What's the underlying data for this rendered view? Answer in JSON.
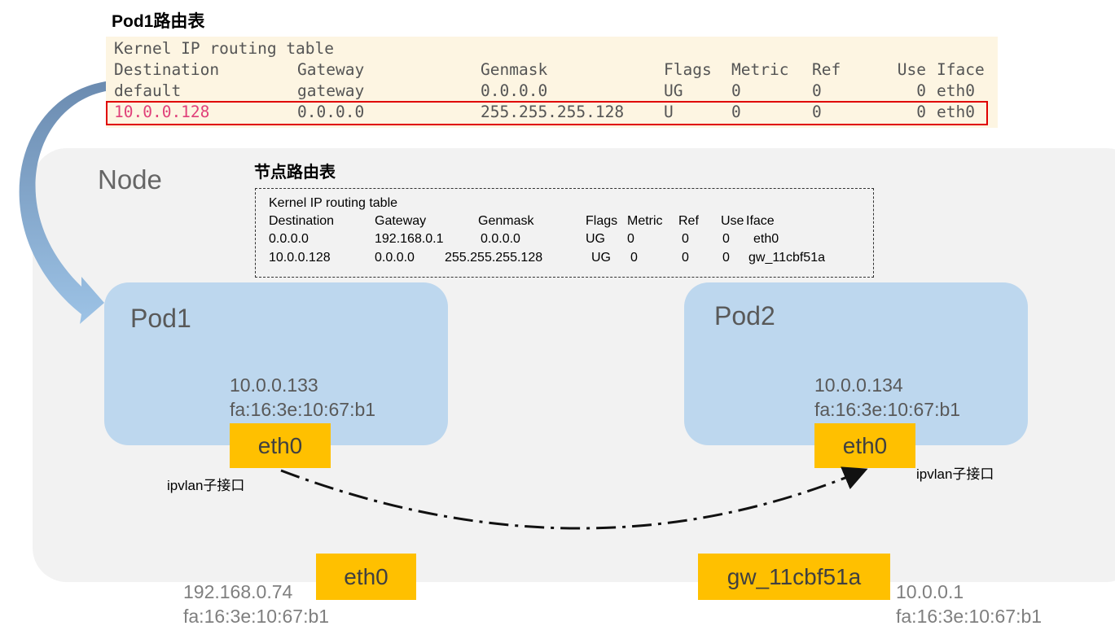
{
  "pod1_table": {
    "title": "Pod1路由表",
    "caption": "Kernel IP routing table",
    "headers": [
      "Destination",
      "Gateway",
      "Genmask",
      "Flags",
      "Metric",
      "Ref",
      "Use",
      "Iface"
    ],
    "rows": [
      [
        "default",
        "gateway",
        "0.0.0.0",
        "UG",
        "0",
        "0",
        "0",
        "eth0"
      ],
      [
        "10.0.0.128",
        "0.0.0.0",
        "255.255.255.128",
        "U",
        "0",
        "0",
        "0",
        "eth0"
      ]
    ],
    "highlight_color": "#e00000",
    "highlight_text_color": "#e0407a"
  },
  "node": {
    "label": "Node"
  },
  "node_table": {
    "title": "节点路由表",
    "caption": "Kernel IP routing table",
    "headers": [
      "Destination",
      "Gateway",
      "Genmask",
      "Flags",
      "Metric",
      "Ref",
      "Use",
      "Iface"
    ],
    "rows": [
      [
        "0.0.0.0",
        "192.168.0.1",
        "0.0.0.0",
        "UG",
        "0",
        "0",
        "0",
        "eth0"
      ],
      [
        "10.0.0.128",
        "0.0.0.0",
        "255.255.255.128",
        "UG",
        "0",
        "0",
        "0",
        "gw_11cbf51a"
      ]
    ]
  },
  "pod1": {
    "name": "Pod1",
    "ip": "10.0.0.133",
    "mac": "fa:16:3e:10:67:b1",
    "iface": "eth0",
    "iface_note": "ipvlan子接口"
  },
  "pod2": {
    "name": "Pod2",
    "ip": "10.0.0.134",
    "mac": "fa:16:3e:10:67:b1",
    "iface": "eth0",
    "iface_note": "ipvlan子接口"
  },
  "node_eth0": {
    "iface": "eth0",
    "ip": "192.168.0.74",
    "mac": "fa:16:3e:10:67:b1"
  },
  "node_gw": {
    "iface": "gw_11cbf51a",
    "ip": "10.0.0.1",
    "mac": "fa:16:3e:10:67:b1"
  },
  "colors": {
    "pod": "#bdd7ee",
    "iface": "#ffc000",
    "node": "#f2f2f2"
  }
}
